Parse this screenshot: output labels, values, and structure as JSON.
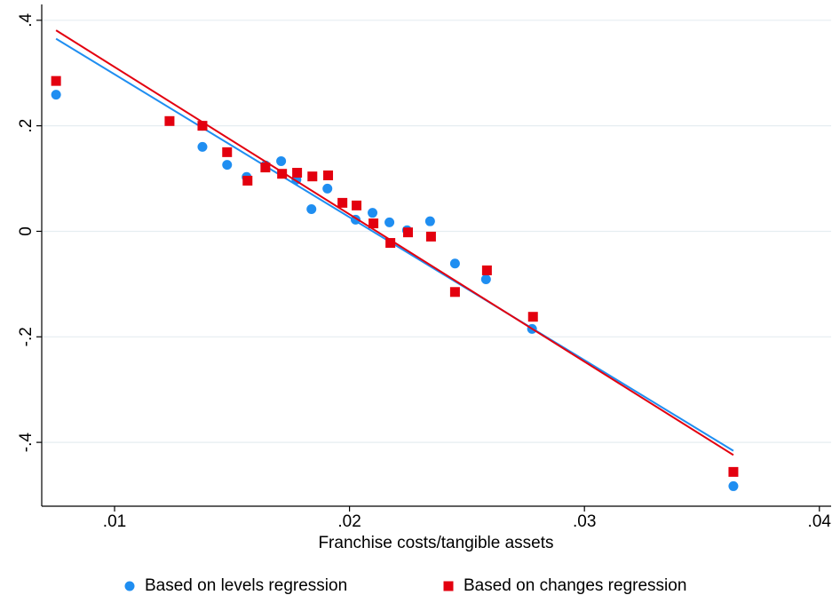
{
  "chart_data": {
    "type": "scatter",
    "x_label": "Franchise costs/tangible assets",
    "xlim": [
      0.0069,
      0.0405
    ],
    "ylim": [
      -0.521,
      0.43
    ],
    "xticks": [
      {
        "value": 0.01,
        "label": ".01"
      },
      {
        "value": 0.02,
        "label": ".02"
      },
      {
        "value": 0.03,
        "label": ".03"
      },
      {
        "value": 0.04,
        "label": ".04"
      }
    ],
    "yticks": [
      {
        "value": -0.4,
        "label": "-.4"
      },
      {
        "value": -0.2,
        "label": "-.2"
      },
      0,
      {
        "value": 0.2,
        "label": ".2"
      },
      {
        "value": 0.4,
        "label": ".4"
      }
    ],
    "grid": true,
    "legend": "bottom",
    "series": [
      {
        "name": "Based on levels regression",
        "color": "#1f8ef1",
        "marker": "circle",
        "x": [
          0.00751,
          0.01374,
          0.01374,
          0.01479,
          0.01562,
          0.01642,
          0.01709,
          0.01774,
          0.01838,
          0.01906,
          0.02026,
          0.02098,
          0.0217,
          0.02245,
          0.02343,
          0.02449,
          0.02581,
          0.02777,
          0.03634
        ],
        "values": [
          0.259,
          0.2,
          0.16,
          0.126,
          0.103,
          0.125,
          0.133,
          0.098,
          0.042,
          0.081,
          0.022,
          0.035,
          0.017,
          0.002,
          0.019,
          -0.061,
          -0.091,
          -0.185,
          -0.483
        ],
        "fit_x": [
          0.00751,
          0.03634
        ],
        "fit_values": [
          0.365,
          -0.416
        ]
      },
      {
        "name": "Based on changes regression",
        "color": "#e3000f",
        "marker": "square",
        "x": [
          0.00751,
          0.01234,
          0.01374,
          0.01479,
          0.01566,
          0.01642,
          0.01713,
          0.01777,
          0.01842,
          0.01909,
          0.0197,
          0.0203,
          0.02102,
          0.02174,
          0.02249,
          0.02347,
          0.02449,
          0.02585,
          0.02781,
          0.03634
        ],
        "values": [
          0.285,
          0.209,
          0.2,
          0.15,
          0.096,
          0.121,
          0.109,
          0.111,
          0.104,
          0.106,
          0.054,
          0.049,
          0.015,
          -0.022,
          -0.002,
          -0.01,
          -0.115,
          -0.074,
          -0.162,
          -0.456
        ],
        "fit_x": [
          0.00751,
          0.03634
        ],
        "fit_values": [
          0.381,
          -0.424
        ]
      }
    ]
  }
}
